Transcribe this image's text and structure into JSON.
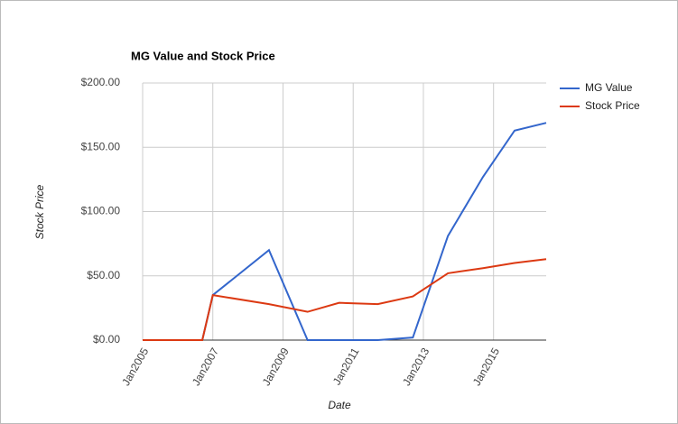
{
  "chart_data": {
    "type": "line",
    "title": "MG Value and Stock Price",
    "x_label": "Date",
    "y_label": "Stock Price",
    "x": [
      2005.0,
      2006.7,
      2007.0,
      2008.6,
      2009.7,
      2010.6,
      2011.7,
      2012.7,
      2013.7,
      2014.7,
      2015.6,
      2016.5
    ],
    "series": [
      {
        "name": "MG Value",
        "color": "#3366cc",
        "values": [
          0,
          0,
          35,
          70,
          0,
          0,
          0,
          2,
          81,
          127,
          163,
          169
        ]
      },
      {
        "name": "Stock Price",
        "color": "#dc3912",
        "values": [
          0,
          0,
          35,
          28,
          22,
          29,
          28,
          34,
          52,
          56,
          60,
          63
        ]
      }
    ],
    "xlim": [
      2005,
      2016.5
    ],
    "xticks": [
      {
        "value": 2005,
        "label": "Jan2005"
      },
      {
        "value": 2007,
        "label": "Jan2007"
      },
      {
        "value": 2009,
        "label": "Jan2009"
      },
      {
        "value": 2011,
        "label": "Jan2011"
      },
      {
        "value": 2013,
        "label": "Jan2013"
      },
      {
        "value": 2015,
        "label": "Jan2015"
      }
    ],
    "ylim": [
      0,
      200
    ],
    "yticks": [
      {
        "value": 0,
        "label": "$0.00"
      },
      {
        "value": 50,
        "label": "$50.00"
      },
      {
        "value": 100,
        "label": "$100.00"
      },
      {
        "value": 150,
        "label": "$150.00"
      },
      {
        "value": 200,
        "label": "$200.00"
      }
    ],
    "grid": true,
    "legend": "right"
  }
}
